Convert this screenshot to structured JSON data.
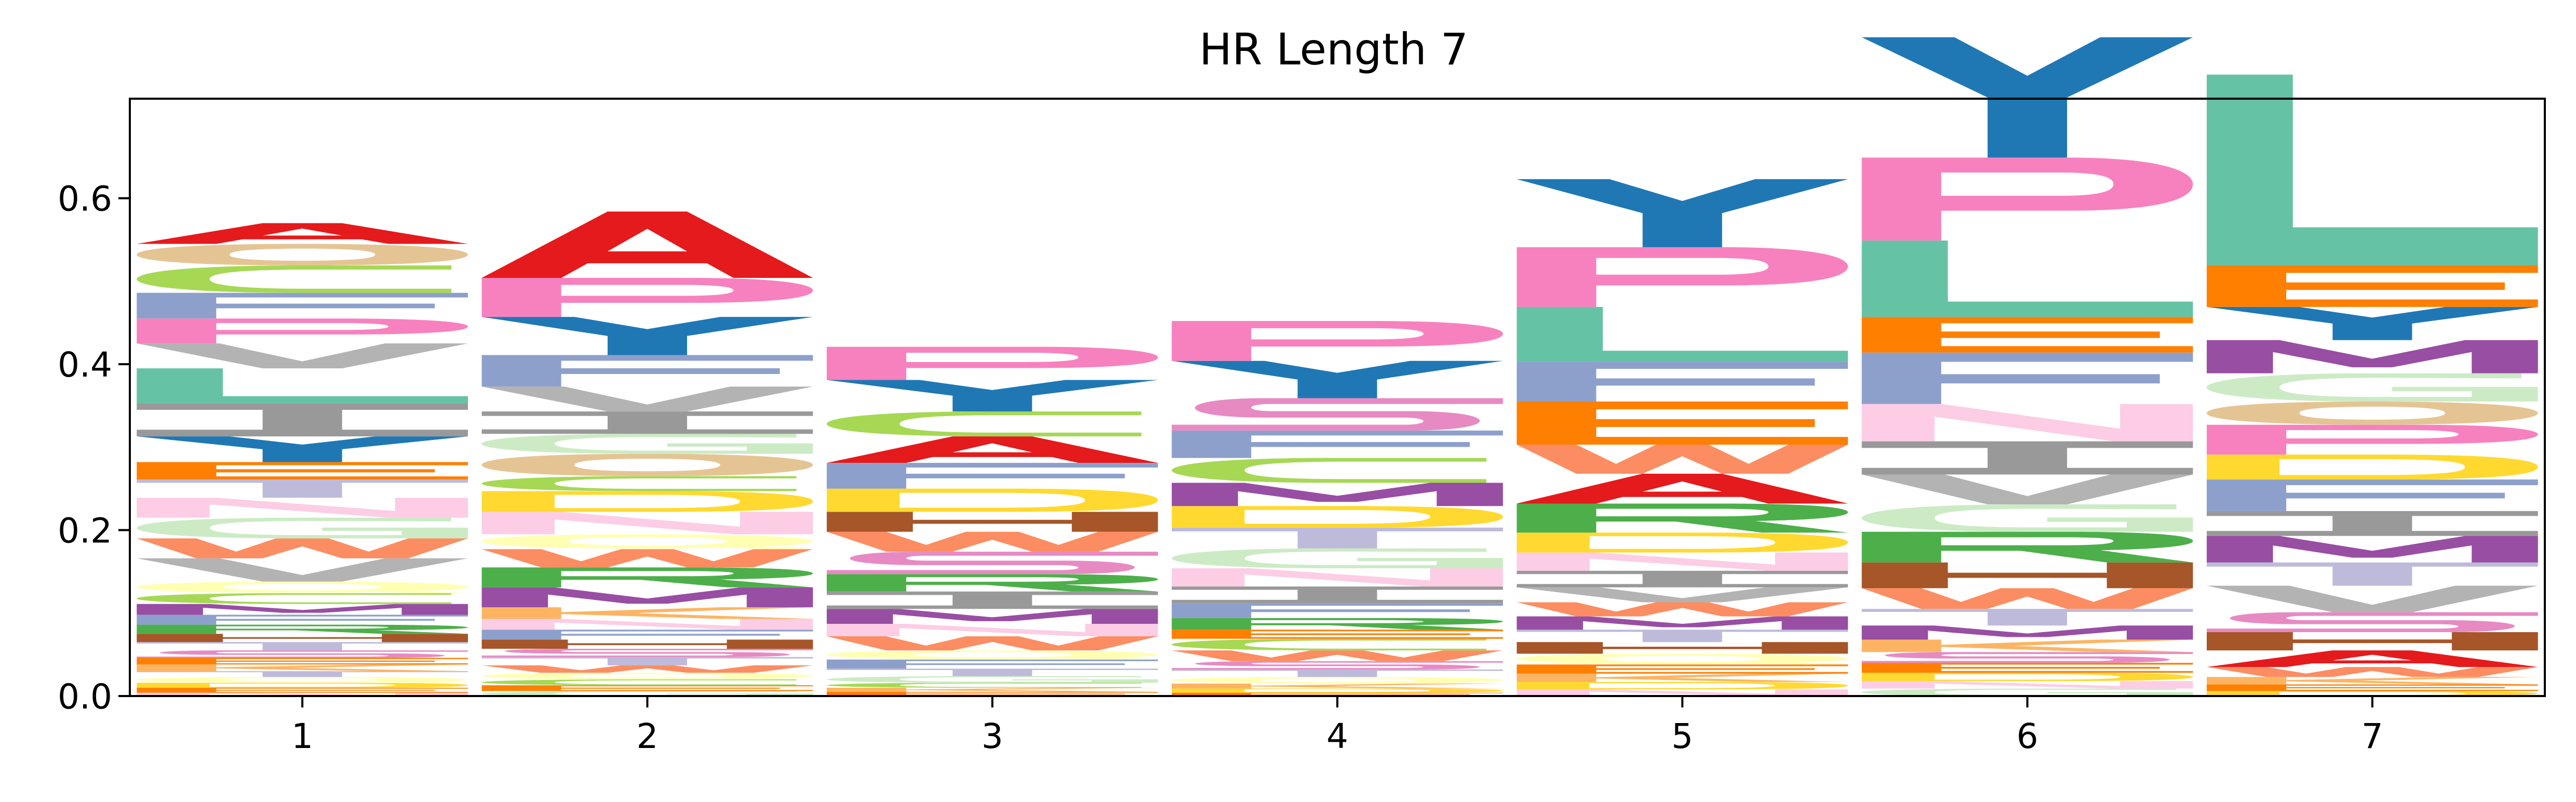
{
  "chart_data": {
    "type": "sequence-logo",
    "title": "HR Length 7",
    "xlabel": "",
    "ylabel": "",
    "ylim": [
      0,
      0.72
    ],
    "yticks": [
      0.0,
      0.2,
      0.4,
      0.6
    ],
    "ytick_labels": [
      "0.0",
      "0.2",
      "0.4",
      "0.6"
    ],
    "categories": [
      "1",
      "2",
      "3",
      "4",
      "5",
      "6",
      "7"
    ],
    "grid": false,
    "legend": "none",
    "positions": [
      {
        "label": "1",
        "letters": [
          {
            "c": "N",
            "h": 0.004
          },
          {
            "c": "E",
            "h": 0.006
          },
          {
            "c": "D",
            "h": 0.006
          },
          {
            "c": "Q",
            "h": 0.007
          },
          {
            "c": "T",
            "h": 0.007
          },
          {
            "c": "K",
            "h": 0.008
          },
          {
            "c": "E",
            "h": 0.008
          },
          {
            "c": "S",
            "h": 0.009
          },
          {
            "c": "T",
            "h": 0.01
          },
          {
            "c": "H",
            "h": 0.01
          },
          {
            "c": "R",
            "h": 0.011
          },
          {
            "c": "F",
            "h": 0.012
          },
          {
            "c": "M",
            "h": 0.013
          },
          {
            "c": "C",
            "h": 0.013
          },
          {
            "c": "Q",
            "h": 0.014
          },
          {
            "c": "V",
            "h": 0.028
          },
          {
            "c": "W",
            "h": 0.024
          },
          {
            "c": "G",
            "h": 0.025
          },
          {
            "c": "N",
            "h": 0.024
          },
          {
            "c": "T",
            "h": 0.022
          },
          {
            "c": "E",
            "h": 0.021
          },
          {
            "c": "Y",
            "h": 0.031
          },
          {
            "c": "I",
            "h": 0.04
          },
          {
            "c": "L",
            "h": 0.042
          },
          {
            "c": "V",
            "h": 0.03
          },
          {
            "c": "P",
            "h": 0.03
          },
          {
            "c": "F",
            "h": 0.031
          },
          {
            "c": "C",
            "h": 0.033
          },
          {
            "c": "O",
            "h": 0.026
          },
          {
            "c": "A",
            "h": 0.025
          }
        ]
      },
      {
        "label": "2",
        "letters": [
          {
            "c": "G",
            "h": 0.006
          },
          {
            "c": "E",
            "h": 0.007
          },
          {
            "c": "C",
            "h": 0.007
          },
          {
            "c": "Q",
            "h": 0.008
          },
          {
            "c": "W",
            "h": 0.009
          },
          {
            "c": "T",
            "h": 0.01
          },
          {
            "c": "S",
            "h": 0.01
          },
          {
            "c": "H",
            "h": 0.011
          },
          {
            "c": "F",
            "h": 0.012
          },
          {
            "c": "N",
            "h": 0.013
          },
          {
            "c": "K",
            "h": 0.014
          },
          {
            "c": "M",
            "h": 0.024
          },
          {
            "c": "R",
            "h": 0.024
          },
          {
            "c": "W",
            "h": 0.022
          },
          {
            "c": "Q",
            "h": 0.018
          },
          {
            "c": "N",
            "h": 0.027
          },
          {
            "c": "D",
            "h": 0.025
          },
          {
            "c": "C",
            "h": 0.018
          },
          {
            "c": "O",
            "h": 0.027
          },
          {
            "c": "G",
            "h": 0.024
          },
          {
            "c": "I",
            "h": 0.027
          },
          {
            "c": "V",
            "h": 0.03
          },
          {
            "c": "F",
            "h": 0.038
          },
          {
            "c": "Y",
            "h": 0.046
          },
          {
            "c": "P",
            "h": 0.047
          },
          {
            "c": "A",
            "h": 0.08
          }
        ]
      },
      {
        "label": "3",
        "letters": [
          {
            "c": "E",
            "h": 0.005
          },
          {
            "c": "K",
            "h": 0.005
          },
          {
            "c": "C",
            "h": 0.006
          },
          {
            "c": "G",
            "h": 0.008
          },
          {
            "c": "T",
            "h": 0.009
          },
          {
            "c": "F",
            "h": 0.011
          },
          {
            "c": "Q",
            "h": 0.011
          },
          {
            "c": "W",
            "h": 0.017
          },
          {
            "c": "N",
            "h": 0.015
          },
          {
            "c": "M",
            "h": 0.018
          },
          {
            "c": "I",
            "h": 0.021
          },
          {
            "c": "R",
            "h": 0.021
          },
          {
            "c": "S",
            "h": 0.027
          },
          {
            "c": "W",
            "h": 0.024
          },
          {
            "c": "H",
            "h": 0.024
          },
          {
            "c": "D",
            "h": 0.028
          },
          {
            "c": "F",
            "h": 0.031
          },
          {
            "c": "A",
            "h": 0.032
          },
          {
            "c": "C",
            "h": 0.03
          },
          {
            "c": "Y",
            "h": 0.038
          },
          {
            "c": "P",
            "h": 0.04
          }
        ]
      },
      {
        "label": "4",
        "letters": [
          {
            "c": "E",
            "h": 0.004
          },
          {
            "c": "D",
            "h": 0.005
          },
          {
            "c": "K",
            "h": 0.006
          },
          {
            "c": "Q",
            "h": 0.008
          },
          {
            "c": "T",
            "h": 0.009
          },
          {
            "c": "S",
            "h": 0.01
          },
          {
            "c": "W",
            "h": 0.013
          },
          {
            "c": "C",
            "h": 0.014
          },
          {
            "c": "E",
            "h": 0.011
          },
          {
            "c": "R",
            "h": 0.014
          },
          {
            "c": "F",
            "h": 0.018
          },
          {
            "c": "I",
            "h": 0.02
          },
          {
            "c": "N",
            "h": 0.022
          },
          {
            "c": "G",
            "h": 0.024
          },
          {
            "c": "T",
            "h": 0.025
          },
          {
            "c": "D",
            "h": 0.026
          },
          {
            "c": "M",
            "h": 0.028
          },
          {
            "c": "C",
            "h": 0.03
          },
          {
            "c": "F",
            "h": 0.033
          },
          {
            "c": "S",
            "h": 0.039
          },
          {
            "c": "Y",
            "h": 0.045
          },
          {
            "c": "P",
            "h": 0.048
          }
        ]
      },
      {
        "label": "5",
        "letters": [
          {
            "c": "N",
            "h": 0.008
          },
          {
            "c": "D",
            "h": 0.009
          },
          {
            "c": "K",
            "h": 0.01
          },
          {
            "c": "E",
            "h": 0.011
          },
          {
            "c": "Q",
            "h": 0.013
          },
          {
            "c": "H",
            "h": 0.014
          },
          {
            "c": "T",
            "h": 0.015
          },
          {
            "c": "M",
            "h": 0.016
          },
          {
            "c": "W",
            "h": 0.017
          },
          {
            "c": "V",
            "h": 0.018
          },
          {
            "c": "I",
            "h": 0.02
          },
          {
            "c": "N",
            "h": 0.022
          },
          {
            "c": "D",
            "h": 0.024
          },
          {
            "c": "R",
            "h": 0.035
          },
          {
            "c": "A",
            "h": 0.036
          },
          {
            "c": "W",
            "h": 0.035
          },
          {
            "c": "E",
            "h": 0.052
          },
          {
            "c": "F",
            "h": 0.048
          },
          {
            "c": "L",
            "h": 0.066
          },
          {
            "c": "P",
            "h": 0.072
          },
          {
            "c": "Y",
            "h": 0.082
          }
        ]
      },
      {
        "label": "6",
        "letters": [
          {
            "c": "G",
            "h": 0.009
          },
          {
            "c": "N",
            "h": 0.009
          },
          {
            "c": "D",
            "h": 0.01
          },
          {
            "c": "E",
            "h": 0.012
          },
          {
            "c": "S",
            "h": 0.013
          },
          {
            "c": "K",
            "h": 0.015
          },
          {
            "c": "M",
            "h": 0.017
          },
          {
            "c": "T",
            "h": 0.02
          },
          {
            "c": "W",
            "h": 0.025
          },
          {
            "c": "H",
            "h": 0.031
          },
          {
            "c": "R",
            "h": 0.037
          },
          {
            "c": "G",
            "h": 0.033
          },
          {
            "c": "V",
            "h": 0.036
          },
          {
            "c": "I",
            "h": 0.04
          },
          {
            "c": "N",
            "h": 0.045
          },
          {
            "c": "F",
            "h": 0.062
          },
          {
            "c": "E",
            "h": 0.043
          },
          {
            "c": "L",
            "h": 0.092
          },
          {
            "c": "P",
            "h": 0.1
          },
          {
            "c": "Y",
            "h": 0.145
          }
        ]
      },
      {
        "label": "7",
        "letters": [
          {
            "c": "D",
            "h": 0.006
          },
          {
            "c": "E",
            "h": 0.008
          },
          {
            "c": "K",
            "h": 0.009
          },
          {
            "c": "W",
            "h": 0.012
          },
          {
            "c": "A",
            "h": 0.02
          },
          {
            "c": "H",
            "h": 0.022
          },
          {
            "c": "S",
            "h": 0.024
          },
          {
            "c": "V",
            "h": 0.032
          },
          {
            "c": "T",
            "h": 0.028
          },
          {
            "c": "M",
            "h": 0.032
          },
          {
            "c": "I",
            "h": 0.03
          },
          {
            "c": "F",
            "h": 0.038
          },
          {
            "c": "D",
            "h": 0.03
          },
          {
            "c": "P",
            "h": 0.036
          },
          {
            "c": "O",
            "h": 0.028
          },
          {
            "c": "G",
            "h": 0.034
          },
          {
            "c": "M",
            "h": 0.04
          },
          {
            "c": "Y",
            "h": 0.04
          },
          {
            "c": "E",
            "h": 0.05
          },
          {
            "c": "L",
            "h": 0.23
          }
        ]
      }
    ]
  },
  "colors": {
    "A": "#e41a1c",
    "C": "#a6d854",
    "D": "#ffd92f",
    "E": "#ff7f00",
    "F": "#8da0cb",
    "G": "#ccebc5",
    "H": "#a65628",
    "I": "#999999",
    "K": "#fdb462",
    "L": "#66c2a5",
    "M": "#984ea3",
    "N": "#fccde5",
    "O": "#e5c494",
    "P": "#f781bf",
    "Q": "#ffffb3",
    "R": "#4daf4a",
    "S": "#e78ac3",
    "T": "#bebada",
    "V": "#b3b3b3",
    "W": "#fc8d62",
    "Y": "#1f78b4"
  }
}
